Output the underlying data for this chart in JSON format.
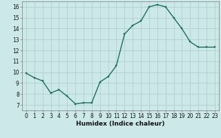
{
  "x": [
    0,
    1,
    2,
    3,
    4,
    5,
    6,
    7,
    8,
    9,
    10,
    11,
    12,
    13,
    14,
    15,
    16,
    17,
    18,
    19,
    20,
    21,
    22,
    23
  ],
  "y": [
    9.9,
    9.5,
    9.2,
    8.1,
    8.4,
    7.8,
    7.1,
    7.2,
    7.2,
    9.1,
    9.6,
    10.6,
    13.5,
    14.3,
    14.7,
    16.0,
    16.2,
    16.0,
    15.0,
    14.0,
    12.8,
    12.3,
    12.3,
    12.3
  ],
  "bg_color": "#cce8e8",
  "grid_color": "#aacccc",
  "line_color": "#1a6b5a",
  "marker_color": "#1a6b5a",
  "xlabel": "Humidex (Indice chaleur)",
  "xlim": [
    -0.5,
    23.5
  ],
  "ylim": [
    6.5,
    16.5
  ],
  "yticks": [
    7,
    8,
    9,
    10,
    11,
    12,
    13,
    14,
    15,
    16
  ],
  "xticks": [
    0,
    1,
    2,
    3,
    4,
    5,
    6,
    7,
    8,
    9,
    10,
    11,
    12,
    13,
    14,
    15,
    16,
    17,
    18,
    19,
    20,
    21,
    22,
    23
  ],
  "label_fontsize": 6.5,
  "tick_fontsize": 5.5,
  "line_width": 1.0,
  "marker_size": 2.0
}
